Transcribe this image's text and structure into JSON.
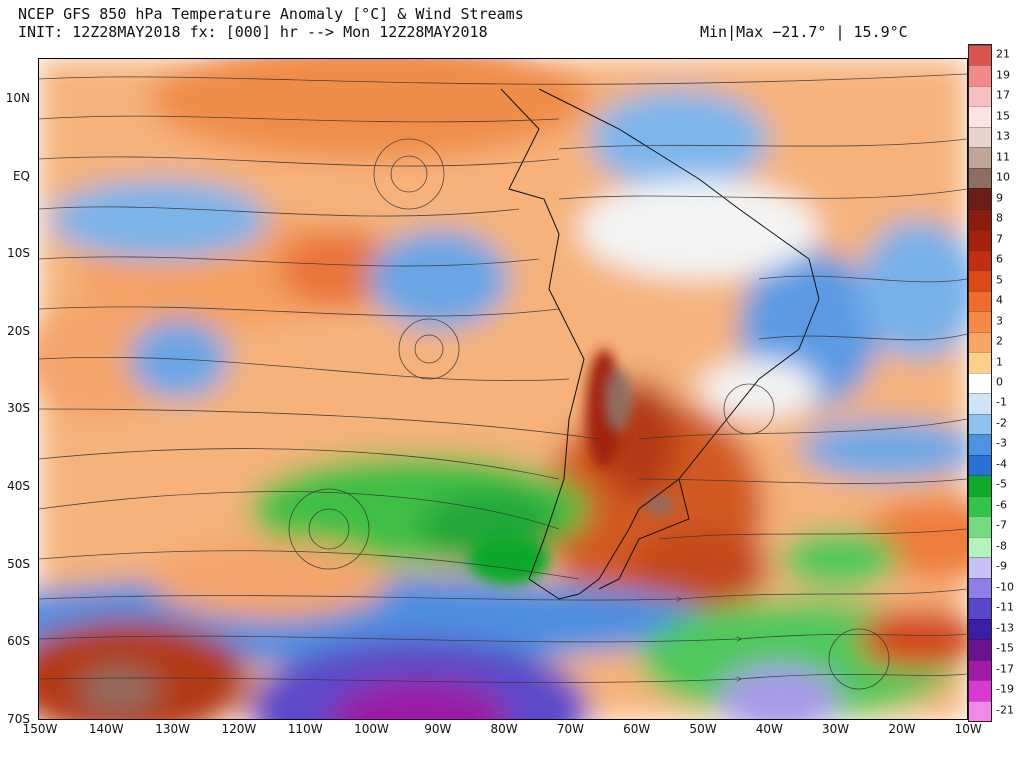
{
  "header": {
    "title": "NCEP GFS 850 hPa Temperature Anomaly [°C] & Wind Streams",
    "init": "INIT: 12Z28MAY2018 fx: [000] hr --> Mon 12Z28MAY2018",
    "minmax": "Min|Max −21.7° | 15.9°C"
  },
  "axes": {
    "lat_labels": [
      "10N",
      "EQ",
      "10S",
      "20S",
      "30S",
      "40S",
      "50S",
      "60S",
      "70S"
    ],
    "lon_labels": [
      "150W",
      "140W",
      "130W",
      "120W",
      "110W",
      "100W",
      "90W",
      "80W",
      "70W",
      "60W",
      "50W",
      "40W",
      "30W",
      "20W",
      "10W"
    ]
  },
  "colorbar": {
    "levels": [
      {
        "label": "21",
        "color": "#d9534f"
      },
      {
        "label": "19",
        "color": "#f08a8a"
      },
      {
        "label": "17",
        "color": "#f7c0c0"
      },
      {
        "label": "15",
        "color": "#fbe3e3"
      },
      {
        "label": "13",
        "color": "#e6d3cd"
      },
      {
        "label": "11",
        "color": "#bfa59a"
      },
      {
        "label": "10",
        "color": "#8e6e62"
      },
      {
        "label": "9",
        "color": "#6b1f18"
      },
      {
        "label": "8",
        "color": "#8b1d10"
      },
      {
        "label": "7",
        "color": "#a3220e"
      },
      {
        "label": "6",
        "color": "#c02d10"
      },
      {
        "label": "5",
        "color": "#dd4a17"
      },
      {
        "label": "4",
        "color": "#ee6d2a"
      },
      {
        "label": "3",
        "color": "#f38a45"
      },
      {
        "label": "2",
        "color": "#f6a566"
      },
      {
        "label": "1",
        "color": "#fbd08d"
      },
      {
        "label": "0",
        "color": "#ffffff"
      },
      {
        "label": "-1",
        "color": "#cfe4f6"
      },
      {
        "label": "-2",
        "color": "#8ec1ee"
      },
      {
        "label": "-3",
        "color": "#4e93e0"
      },
      {
        "label": "-4",
        "color": "#2a6fd3"
      },
      {
        "label": "-5",
        "color": "#11a82b"
      },
      {
        "label": "-6",
        "color": "#33c24a"
      },
      {
        "label": "-7",
        "color": "#73da7e"
      },
      {
        "label": "-8",
        "color": "#b6f0bb"
      },
      {
        "label": "-9",
        "color": "#c8c0f2"
      },
      {
        "label": "-10",
        "color": "#8d7fe3"
      },
      {
        "label": "-11",
        "color": "#5a47cc"
      },
      {
        "label": "-13",
        "color": "#3a1fa6"
      },
      {
        "label": "-15",
        "color": "#6a1490"
      },
      {
        "label": "-17",
        "color": "#a21aa8"
      },
      {
        "label": "-19",
        "color": "#d63ad1"
      },
      {
        "label": "-21",
        "color": "#f08ae8"
      }
    ]
  }
}
